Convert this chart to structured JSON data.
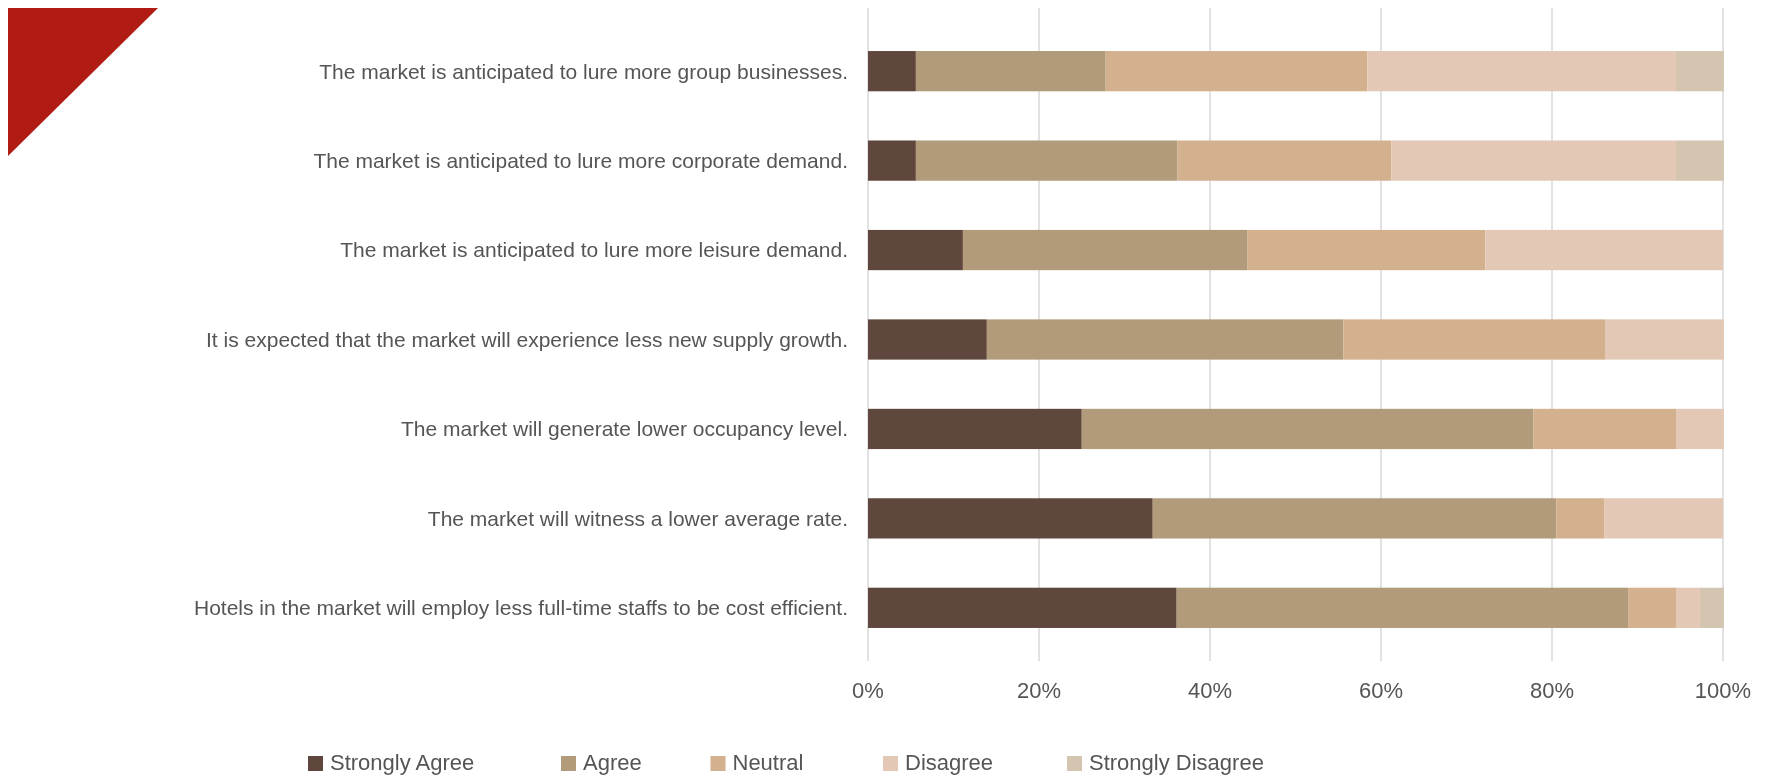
{
  "chart_data": {
    "type": "bar",
    "orientation": "horizontal",
    "stacked": true,
    "categories": [
      "The market is anticipated to lure more group businesses.",
      "The market is anticipated to lure more corporate demand.",
      "The market is anticipated to lure more leisure demand.",
      "It is expected that the market will experience less new supply growth.",
      "The market will generate lower occupancy level.",
      "The market will witness a lower average rate.",
      "Hotels in the market will employ less full-time staffs to be cost efficient."
    ],
    "series": [
      {
        "name": "Strongly Agree",
        "color": "#5f473d",
        "values": [
          5.6,
          5.6,
          11.1,
          13.9,
          25,
          33.3,
          36.1
        ]
      },
      {
        "name": "Agree",
        "color": "#b19b7b",
        "values": [
          22.2,
          30.6,
          33.3,
          41.7,
          52.8,
          47.2,
          52.8
        ]
      },
      {
        "name": "Neutral",
        "color": "#d3b08e",
        "values": [
          30.6,
          25,
          27.8,
          30.6,
          16.7,
          5.6,
          5.6
        ]
      },
      {
        "name": "Disagree",
        "color": "#e3c9b5",
        "values": [
          36.1,
          33.3,
          27.8,
          13.9,
          5.6,
          13.9,
          2.8
        ]
      },
      {
        "name": "Strongly Disagree",
        "color": "#d4c5b1",
        "values": [
          5.6,
          5.6,
          0,
          0,
          0,
          0,
          2.8
        ]
      }
    ],
    "xlim": [
      0,
      100
    ],
    "xticks": [
      {
        "value": 0,
        "label": "0%"
      },
      {
        "value": 20,
        "label": "20%"
      },
      {
        "value": 40,
        "label": "40%"
      },
      {
        "value": 60,
        "label": "60%"
      },
      {
        "value": 80,
        "label": "80%"
      },
      {
        "value": 100,
        "label": "100%"
      }
    ],
    "grid": "x",
    "legend": "bottom"
  }
}
